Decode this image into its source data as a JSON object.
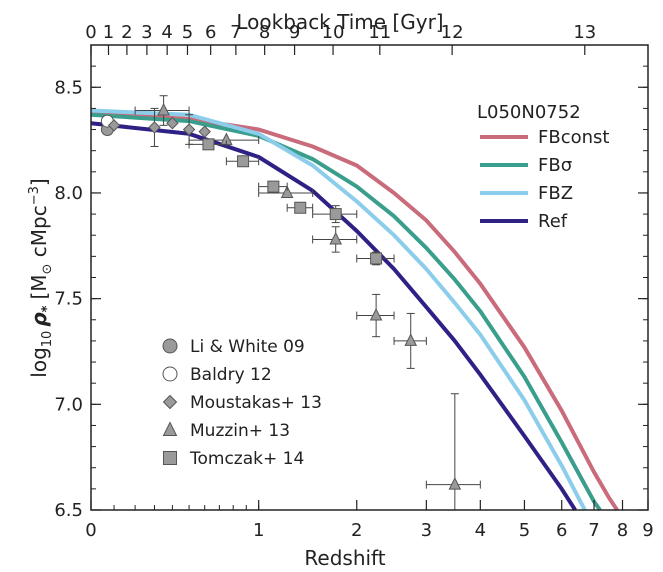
{
  "chart_data": {
    "type": "line",
    "title": "",
    "xlabel": "Redshift",
    "x2label": "Lookback Time [Gyr]",
    "ylabel_main": "log",
    "ylabel_sub": "10",
    "ylabel_rho": "ρ",
    "ylabel_rho_sub": "*",
    "ylabel_units": "[M",
    "ylabel_units_sun": "⊙",
    "ylabel_units_rest": " cMpc",
    "ylabel_units_exp": "−3",
    "ylabel_close": "]",
    "xscale": "log(1+z)",
    "xlim": [
      0,
      9
    ],
    "ylim": [
      6.5,
      8.7
    ],
    "xticks": [
      0,
      1,
      2,
      3,
      4,
      5,
      6,
      7,
      8,
      9
    ],
    "yticks": [
      6.5,
      7.0,
      7.5,
      8.0,
      8.5
    ],
    "yticklabels": [
      "6.5",
      "7.0",
      "7.5",
      "8.0",
      "8.5"
    ],
    "x2ticks": [
      0,
      1,
      2,
      3,
      4,
      5,
      6,
      7,
      8,
      9,
      10,
      11,
      12,
      13
    ],
    "x2tick_labels": [
      {
        "label": "0",
        "z": 0.0
      },
      {
        "label": "1",
        "z": 0.075
      },
      {
        "label": "2",
        "z": 0.16
      },
      {
        "label": "3",
        "z": 0.26
      },
      {
        "label": "4",
        "z": 0.37
      },
      {
        "label": "5",
        "z": 0.49
      },
      {
        "label": "6",
        "z": 0.64
      },
      {
        "label": "7",
        "z": 0.82
      },
      {
        "label": "8",
        "z": 1.05
      },
      {
        "label": "9",
        "z": 1.32
      },
      {
        "label": "10",
        "z": 1.72
      },
      {
        "label": "11",
        "z": 2.3
      },
      {
        "label": "12",
        "z": 3.45
      },
      {
        "label": "13",
        "z": 6.7
      }
    ],
    "legend_title": "L050N0752",
    "series": [
      {
        "name": "FBconst",
        "color": "#c96b7a",
        "x": [
          0,
          0.5,
          1,
          1.5,
          2,
          2.5,
          3,
          3.5,
          4,
          5,
          6,
          7,
          7.5,
          7.8
        ],
        "y": [
          8.38,
          8.35,
          8.3,
          8.22,
          8.13,
          8.0,
          7.87,
          7.72,
          7.57,
          7.27,
          6.97,
          6.68,
          6.56,
          6.5
        ]
      },
      {
        "name": "FBσ",
        "color": "#3a9e8c",
        "x": [
          0,
          0.5,
          1,
          1.5,
          2,
          2.5,
          3,
          3.5,
          4,
          5,
          6,
          7,
          7.2
        ],
        "y": [
          8.37,
          8.34,
          8.27,
          8.16,
          8.03,
          7.89,
          7.74,
          7.59,
          7.44,
          7.13,
          6.82,
          6.54,
          6.5
        ]
      },
      {
        "name": "FBZ",
        "color": "#8ccdec",
        "x": [
          0,
          0.5,
          1,
          1.5,
          2,
          2.5,
          3,
          3.5,
          4,
          5,
          6,
          6.7
        ],
        "y": [
          8.39,
          8.37,
          8.28,
          8.13,
          7.96,
          7.8,
          7.64,
          7.48,
          7.33,
          7.02,
          6.71,
          6.5
        ]
      },
      {
        "name": "Ref",
        "color": "#2e2185",
        "x": [
          0,
          0.5,
          1,
          1.5,
          2,
          2.5,
          3,
          3.5,
          4,
          5,
          6,
          6.4
        ],
        "y": [
          8.33,
          8.28,
          8.17,
          8.01,
          7.82,
          7.64,
          7.46,
          7.3,
          7.14,
          6.85,
          6.6,
          6.5
        ]
      }
    ],
    "observations": [
      {
        "name": "Li & White 09",
        "marker": "circle",
        "fill": "#9a9a9a",
        "points": [
          {
            "x": 0.07,
            "y": 8.3
          }
        ]
      },
      {
        "name": "Baldry 12",
        "marker": "circle",
        "fill": "#ffffff",
        "points": [
          {
            "x": 0.07,
            "y": 8.34
          }
        ]
      },
      {
        "name": "Moustakas+ 13",
        "marker": "diamond",
        "fill": "#9a9a9a",
        "points": [
          {
            "x": 0.1,
            "y": 8.32
          },
          {
            "x": 0.3,
            "y": 8.31,
            "yerr": 0.09
          },
          {
            "x": 0.4,
            "y": 8.33
          },
          {
            "x": 0.5,
            "y": 8.3,
            "yerr": 0.07
          },
          {
            "x": 0.6,
            "y": 8.29
          }
        ]
      },
      {
        "name": "Muzzin+ 13",
        "marker": "triangle",
        "fill": "#9a9a9a",
        "points": [
          {
            "x": 0.35,
            "y": 8.39,
            "xerr": [
              0.2,
              0.5
            ],
            "yerr": 0.07
          },
          {
            "x": 0.75,
            "y": 8.25,
            "xerr": [
              0.5,
              1.0
            ]
          },
          {
            "x": 1.25,
            "y": 8.0,
            "xerr": [
              1.0,
              1.5
            ]
          },
          {
            "x": 1.75,
            "y": 7.78,
            "xerr": [
              1.5,
              2.0
            ],
            "yerr": 0.06
          },
          {
            "x": 2.25,
            "y": 7.42,
            "xerr": [
              2.0,
              2.5
            ],
            "yerr": 0.1
          },
          {
            "x": 2.75,
            "y": 7.3,
            "xerr": [
              2.5,
              3.0
            ],
            "yerr": 0.13
          },
          {
            "x": 3.5,
            "y": 6.62,
            "xerr": [
              3.0,
              4.0
            ],
            "yerr_hi": 0.43,
            "yerr_lo": 0.12
          }
        ]
      },
      {
        "name": "Tomczak+ 14",
        "marker": "square",
        "fill": "#9a9a9a",
        "points": [
          {
            "x": 0.625,
            "y": 8.23,
            "xerr": [
              0.5,
              0.75
            ]
          },
          {
            "x": 0.875,
            "y": 8.15,
            "xerr": [
              0.75,
              1.0
            ]
          },
          {
            "x": 1.125,
            "y": 8.03,
            "xerr": [
              1.0,
              1.25
            ]
          },
          {
            "x": 1.375,
            "y": 7.93,
            "xerr": [
              1.25,
              1.5
            ]
          },
          {
            "x": 1.75,
            "y": 7.9,
            "xerr": [
              1.5,
              2.0
            ],
            "yerr": 0.04
          },
          {
            "x": 2.25,
            "y": 7.69,
            "xerr": [
              2.0,
              2.5
            ],
            "yerr": 0.03
          }
        ]
      }
    ]
  }
}
